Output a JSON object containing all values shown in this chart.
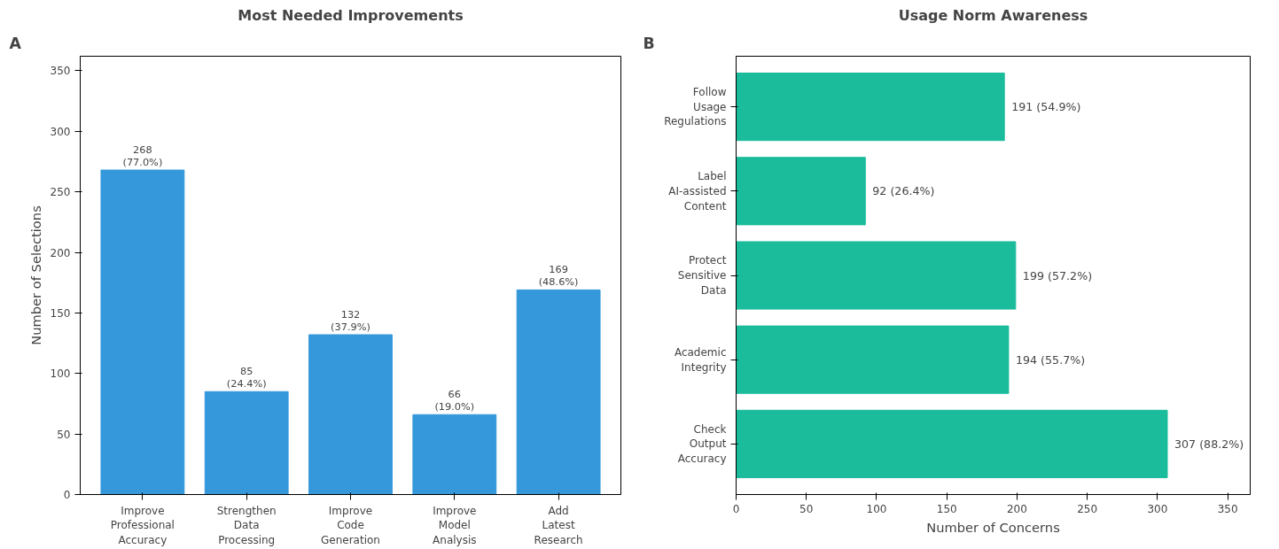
{
  "chart_data": [
    {
      "type": "bar",
      "title": "Most Needed Improvements",
      "ylabel": "Number of Selections",
      "annotations": [
        "A"
      ],
      "categories": [
        "Improve Professional Accuracy",
        "Strengthen Data Processing",
        "Improve Code Generation",
        "Improve Model Analysis",
        "Add Latest Research"
      ],
      "values": [
        268,
        85,
        132,
        66,
        169
      ],
      "color": "#3498db",
      "value_labels": [
        "268\n(77.0%)",
        "85\n(24.4%)",
        "132\n(37.9%)",
        "66\n(19.0%)",
        "169\n(48.6%)"
      ],
      "ylim": [
        0,
        362
      ],
      "yticks": [
        0,
        50,
        100,
        150,
        200,
        250,
        300,
        350
      ],
      "grid": false
    },
    {
      "type": "bar",
      "orientation": "horizontal",
      "title": "Usage Norm Awareness",
      "xlabel": "Number of Concerns",
      "annotations": [
        "B"
      ],
      "categories": [
        "Follow Usage Regulations",
        "Label AI-assisted Content",
        "Protect Sensitive Data",
        "Academic Integrity",
        "Check Output Accuracy"
      ],
      "values": [
        191,
        92,
        199,
        194,
        307
      ],
      "color": "#1abc9c",
      "value_labels": [
        "191 (54.9%)",
        "92 (26.4%)",
        "199 (57.2%)",
        "194 (55.7%)",
        "307 (88.2%)"
      ],
      "xlim": [
        0,
        366
      ],
      "xticks": [
        0,
        50,
        100,
        150,
        200,
        250,
        300,
        350
      ],
      "grid": false
    }
  ]
}
